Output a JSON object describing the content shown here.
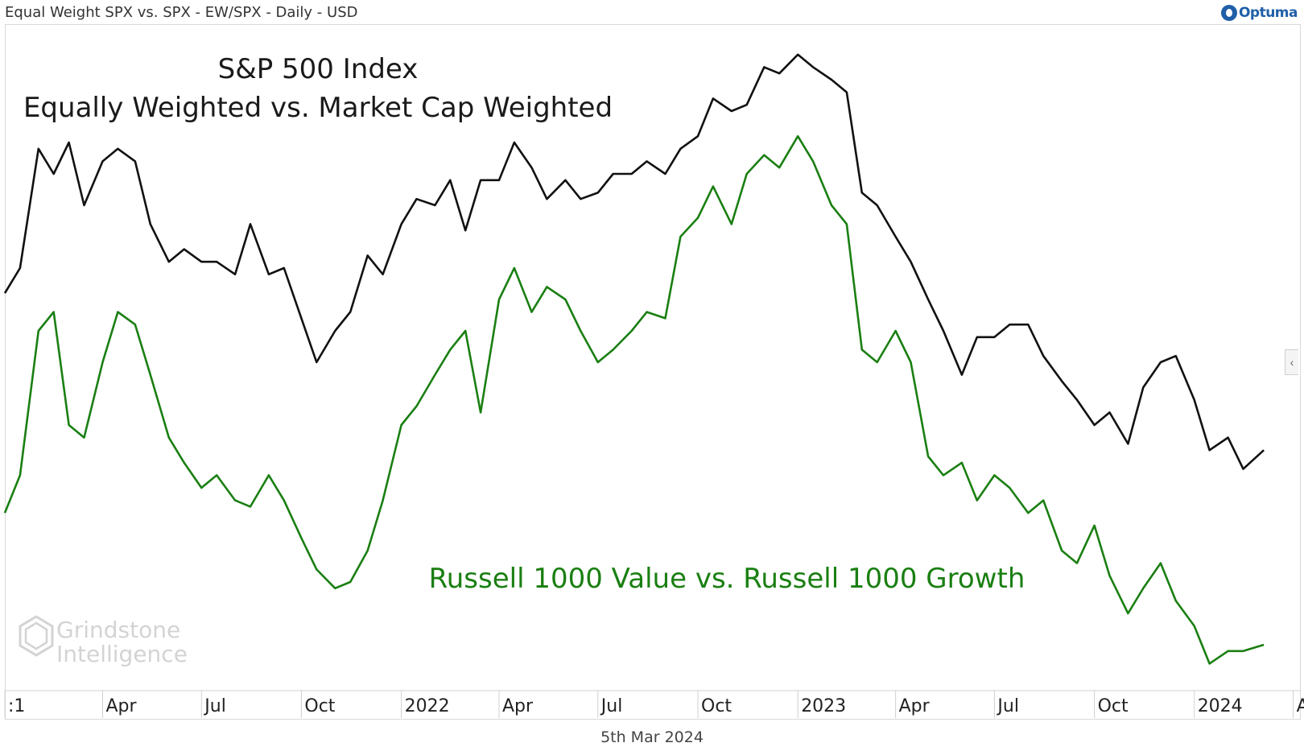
{
  "header": {
    "title": "Equal Weight SPX vs. SPX - EW/SPX - Daily - USD",
    "logo_text": "Optuma",
    "logo_icon": "optuma-logo-icon"
  },
  "footer": {
    "date": "5th Mar 2024"
  },
  "watermark": {
    "line1": "Grindstone",
    "line2": "Intelligence",
    "icon": "hexagon-g-icon"
  },
  "side_tab": {
    "icon": "chevron-left-icon",
    "glyph": "‹"
  },
  "chart_data": {
    "type": "line",
    "annotations": [
      {
        "text": "S&P 500 Index",
        "color": "#1a1a1a"
      },
      {
        "text": "Equally Weighted vs. Market Cap Weighted",
        "color": "#1a1a1a"
      },
      {
        "text": "Russell 1000 Value vs. Russell 1000 Growth",
        "color": "#1a7f12"
      }
    ],
    "x_ticks": [
      ":1",
      "Apr",
      "Jul",
      "Oct",
      "2022",
      "Apr",
      "Jul",
      "Oct",
      "2023",
      "Apr",
      "Jul",
      "Oct",
      "2024",
      "Ap"
    ],
    "x_tick_dates": [
      "2021-01-01",
      "2021-04-01",
      "2021-07-01",
      "2021-10-01",
      "2022-01-01",
      "2022-04-01",
      "2022-07-01",
      "2022-10-01",
      "2023-01-01",
      "2023-04-01",
      "2023-07-01",
      "2023-10-01",
      "2024-01-01",
      "2024-04-01"
    ],
    "xlim": [
      "2021-01-01",
      "2024-04-08"
    ],
    "ylim": [
      0,
      100
    ],
    "grid": false,
    "series": [
      {
        "color": "#111111",
        "dates": [
          "2021-01-01",
          "2021-01-15",
          "2021-02-01",
          "2021-02-15",
          "2021-03-01",
          "2021-03-15",
          "2021-04-01",
          "2021-04-15",
          "2021-05-01",
          "2021-05-15",
          "2021-06-01",
          "2021-06-15",
          "2021-07-01",
          "2021-07-15",
          "2021-08-01",
          "2021-08-15",
          "2021-09-01",
          "2021-09-15",
          "2021-10-01",
          "2021-10-15",
          "2021-11-01",
          "2021-11-15",
          "2021-12-01",
          "2021-12-15",
          "2022-01-01",
          "2022-01-15",
          "2022-02-01",
          "2022-02-15",
          "2022-03-01",
          "2022-03-15",
          "2022-04-01",
          "2022-04-15",
          "2022-05-01",
          "2022-05-15",
          "2022-06-01",
          "2022-06-15",
          "2022-07-01",
          "2022-07-15",
          "2022-08-01",
          "2022-08-15",
          "2022-09-01",
          "2022-09-15",
          "2022-10-01",
          "2022-10-15",
          "2022-11-01",
          "2022-11-15",
          "2022-12-01",
          "2022-12-15",
          "2023-01-01",
          "2023-01-15",
          "2023-02-01",
          "2023-02-15",
          "2023-03-01",
          "2023-03-15",
          "2023-04-01",
          "2023-04-15",
          "2023-05-01",
          "2023-05-15",
          "2023-06-01",
          "2023-06-15",
          "2023-07-01",
          "2023-07-15",
          "2023-08-01",
          "2023-08-15",
          "2023-09-01",
          "2023-09-15",
          "2023-10-01",
          "2023-10-15",
          "2023-11-01",
          "2023-11-15",
          "2023-12-01",
          "2023-12-15",
          "2024-01-01",
          "2024-01-15",
          "2024-02-01",
          "2024-02-15",
          "2024-03-05"
        ],
        "values": [
          61,
          65,
          84,
          80,
          85,
          75,
          82,
          84,
          82,
          72,
          66,
          68,
          66,
          66,
          64,
          72,
          64,
          65,
          57,
          50,
          55,
          58,
          67,
          64,
          72,
          76,
          75,
          79,
          71,
          79,
          79,
          85,
          81,
          76,
          79,
          76,
          77,
          80,
          80,
          82,
          80,
          84,
          86,
          92,
          90,
          91,
          97,
          96,
          99,
          97,
          95,
          93,
          77,
          75,
          70,
          66,
          60,
          55,
          48,
          54,
          54,
          56,
          56,
          51,
          47,
          44,
          40,
          42,
          37,
          46,
          50,
          51,
          44,
          36,
          38,
          33,
          36
        ]
      },
      {
        "color": "#1a7f12",
        "dates": [
          "2021-01-01",
          "2021-01-15",
          "2021-02-01",
          "2021-02-15",
          "2021-03-01",
          "2021-03-15",
          "2021-04-01",
          "2021-04-15",
          "2021-05-01",
          "2021-05-15",
          "2021-06-01",
          "2021-06-15",
          "2021-07-01",
          "2021-07-15",
          "2021-08-01",
          "2021-08-15",
          "2021-09-01",
          "2021-09-15",
          "2021-10-01",
          "2021-10-15",
          "2021-11-01",
          "2021-11-15",
          "2021-12-01",
          "2021-12-15",
          "2022-01-01",
          "2022-01-15",
          "2022-02-01",
          "2022-02-15",
          "2022-03-01",
          "2022-03-15",
          "2022-04-01",
          "2022-04-15",
          "2022-05-01",
          "2022-05-15",
          "2022-06-01",
          "2022-06-15",
          "2022-07-01",
          "2022-07-15",
          "2022-08-01",
          "2022-08-15",
          "2022-09-01",
          "2022-09-15",
          "2022-10-01",
          "2022-10-15",
          "2022-11-01",
          "2022-11-15",
          "2022-12-01",
          "2022-12-15",
          "2023-01-01",
          "2023-01-15",
          "2023-02-01",
          "2023-02-15",
          "2023-03-01",
          "2023-03-15",
          "2023-04-01",
          "2023-04-15",
          "2023-05-01",
          "2023-05-15",
          "2023-06-01",
          "2023-06-15",
          "2023-07-01",
          "2023-07-15",
          "2023-08-01",
          "2023-08-15",
          "2023-09-01",
          "2023-09-15",
          "2023-10-01",
          "2023-10-15",
          "2023-11-01",
          "2023-11-15",
          "2023-12-01",
          "2023-12-15",
          "2024-01-01",
          "2024-01-15",
          "2024-02-01",
          "2024-02-15",
          "2024-03-05"
        ],
        "values": [
          26,
          32,
          55,
          58,
          40,
          38,
          50,
          58,
          56,
          48,
          38,
          34,
          30,
          32,
          28,
          27,
          32,
          28,
          22,
          17,
          14,
          15,
          20,
          28,
          40,
          43,
          48,
          52,
          55,
          42,
          60,
          65,
          58,
          62,
          60,
          55,
          50,
          52,
          55,
          58,
          57,
          70,
          73,
          78,
          72,
          80,
          83,
          81,
          86,
          82,
          75,
          72,
          52,
          50,
          55,
          50,
          35,
          32,
          34,
          28,
          32,
          30,
          26,
          28,
          20,
          18,
          24,
          16,
          10,
          14,
          18,
          12,
          8,
          2,
          4,
          4,
          5
        ]
      }
    ]
  }
}
